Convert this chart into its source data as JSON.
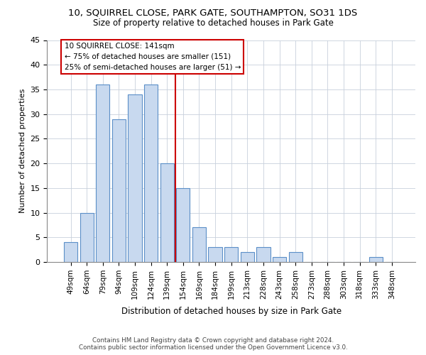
{
  "title1": "10, SQUIRREL CLOSE, PARK GATE, SOUTHAMPTON, SO31 1DS",
  "title2": "Size of property relative to detached houses in Park Gate",
  "xlabel": "Distribution of detached houses by size in Park Gate",
  "ylabel": "Number of detached properties",
  "categories": [
    "49sqm",
    "64sqm",
    "79sqm",
    "94sqm",
    "109sqm",
    "124sqm",
    "139sqm",
    "154sqm",
    "169sqm",
    "184sqm",
    "199sqm",
    "213sqm",
    "228sqm",
    "243sqm",
    "258sqm",
    "273sqm",
    "288sqm",
    "303sqm",
    "318sqm",
    "333sqm",
    "348sqm"
  ],
  "values": [
    4,
    10,
    36,
    29,
    34,
    36,
    20,
    15,
    7,
    3,
    3,
    2,
    3,
    1,
    2,
    0,
    0,
    0,
    0,
    1,
    0
  ],
  "bar_color": "#c8d9ef",
  "bar_edge_color": "#5b8fc8",
  "vline_color": "#cc0000",
  "vline_x": 6.5,
  "annotation_line1": "10 SQUIRREL CLOSE: 141sqm",
  "annotation_line2": "← 75% of detached houses are smaller (151)",
  "annotation_line3": "25% of semi-detached houses are larger (51) →",
  "ylim_min": 0,
  "ylim_max": 45,
  "yticks": [
    0,
    5,
    10,
    15,
    20,
    25,
    30,
    35,
    40,
    45
  ],
  "footer1": "Contains HM Land Registry data © Crown copyright and database right 2024.",
  "footer2": "Contains public sector information licensed under the Open Government Licence v3.0.",
  "bg_color": "#ffffff",
  "grid_color": "#c8d0dc"
}
